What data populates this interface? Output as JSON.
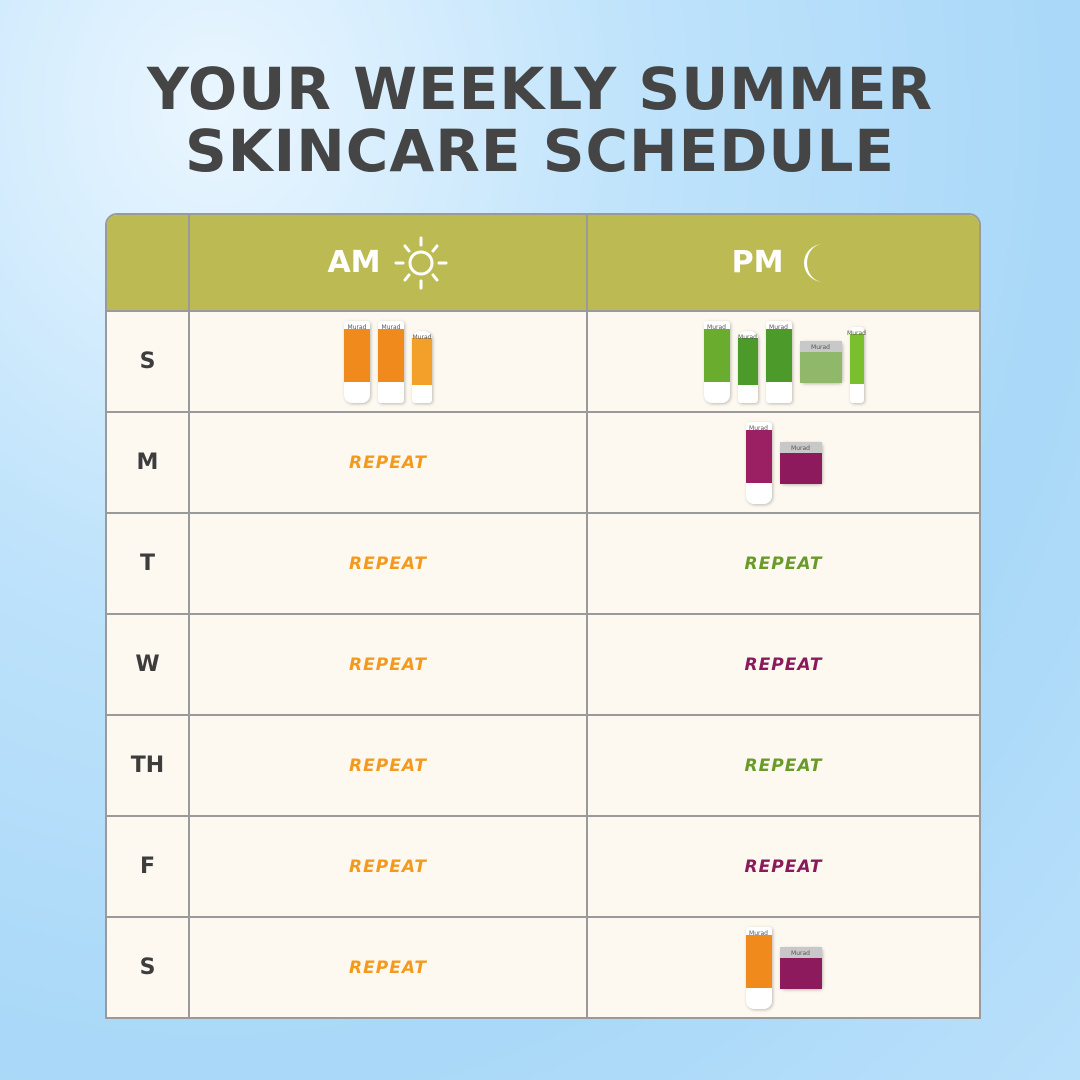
{
  "title_line1": "YOUR WEEKLY SUMMER",
  "title_line2": "SKINCARE SCHEDULE",
  "header": {
    "am": "AM",
    "am_icon": "sun-icon",
    "pm": "PM",
    "pm_icon": "moon-icon"
  },
  "colors": {
    "header": "#bcbb53",
    "cell": "#fdf9f0",
    "orange": "#f39a1e",
    "green": "#6a9a2a",
    "purple": "#8a1a5a"
  },
  "brand": "Murad",
  "rows": [
    {
      "day": "S",
      "am": {
        "products": [
          {
            "shape": "tube",
            "color": "#f08a1c"
          },
          {
            "shape": "bottle",
            "color": "#f08a1c"
          },
          {
            "shape": "serum",
            "color": "#f3a02a"
          }
        ]
      },
      "pm": {
        "products": [
          {
            "shape": "tube",
            "color": "#6aad2e"
          },
          {
            "shape": "serum",
            "color": "#4c9a2a"
          },
          {
            "shape": "bottle",
            "color": "#4c9a2a"
          },
          {
            "shape": "jar",
            "color": "#8fb86a"
          },
          {
            "shape": "pen",
            "color": "#7abf2e"
          }
        ]
      }
    },
    {
      "day": "M",
      "am": {
        "text": "REPEAT",
        "color": "#f39a1e"
      },
      "pm": {
        "products": [
          {
            "shape": "tube",
            "color": "#9a1f63"
          },
          {
            "shape": "jar",
            "color": "#8e1a5e"
          }
        ]
      }
    },
    {
      "day": "T",
      "am": {
        "text": "REPEAT",
        "color": "#f39a1e"
      },
      "pm": {
        "text": "REPEAT",
        "color": "#6a9a2a"
      }
    },
    {
      "day": "W",
      "am": {
        "text": "REPEAT",
        "color": "#f39a1e"
      },
      "pm": {
        "text": "REPEAT",
        "color": "#8a1a5a"
      }
    },
    {
      "day": "TH",
      "am": {
        "text": "REPEAT",
        "color": "#f39a1e"
      },
      "pm": {
        "text": "REPEAT",
        "color": "#6a9a2a"
      }
    },
    {
      "day": "F",
      "am": {
        "text": "REPEAT",
        "color": "#f39a1e"
      },
      "pm": {
        "text": "REPEAT",
        "color": "#8a1a5a"
      }
    },
    {
      "day": "S",
      "am": {
        "text": "REPEAT",
        "color": "#f39a1e"
      },
      "pm": {
        "products": [
          {
            "shape": "tube",
            "color": "#f08a1c"
          },
          {
            "shape": "jar",
            "color": "#8e1a5e"
          }
        ]
      }
    }
  ]
}
